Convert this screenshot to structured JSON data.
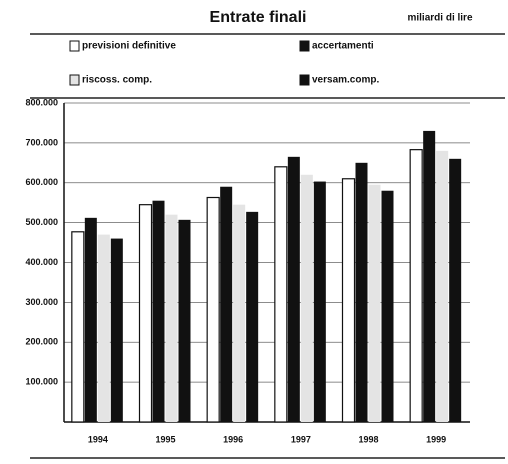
{
  "chart_data": {
    "type": "bar",
    "title": "Entrate finali",
    "subtitle": "miliardi di lire",
    "categories": [
      "1994",
      "1995",
      "1996",
      "1997",
      "1998",
      "1999"
    ],
    "series": [
      {
        "name": "previsioni definitive",
        "color": "#ffffff",
        "values": [
          477000,
          545000,
          563000,
          640000,
          610000,
          683000
        ]
      },
      {
        "name": "accertamenti",
        "color": "#111111",
        "values": [
          512000,
          555000,
          590000,
          665000,
          650000,
          730000
        ]
      },
      {
        "name": "riscoss. comp.",
        "color": "#e4e4e4",
        "values": [
          470000,
          520000,
          545000,
          620000,
          595000,
          680000
        ]
      },
      {
        "name": "versam.comp.",
        "color": "#111111",
        "values": [
          460000,
          507000,
          527000,
          603000,
          580000,
          660000
        ]
      }
    ],
    "ylim": [
      0,
      800000
    ],
    "yticks": [
      {
        "value": 100000,
        "label": "100.000"
      },
      {
        "value": 200000,
        "label": "200.000"
      },
      {
        "value": 300000,
        "label": "300.000"
      },
      {
        "value": 400000,
        "label": "400.000"
      },
      {
        "value": 500000,
        "label": "500.000"
      },
      {
        "value": 600000,
        "label": "600.000"
      },
      {
        "value": 700000,
        "label": "700.000"
      },
      {
        "value": 800000,
        "label": "800.000"
      }
    ],
    "grid": true
  }
}
